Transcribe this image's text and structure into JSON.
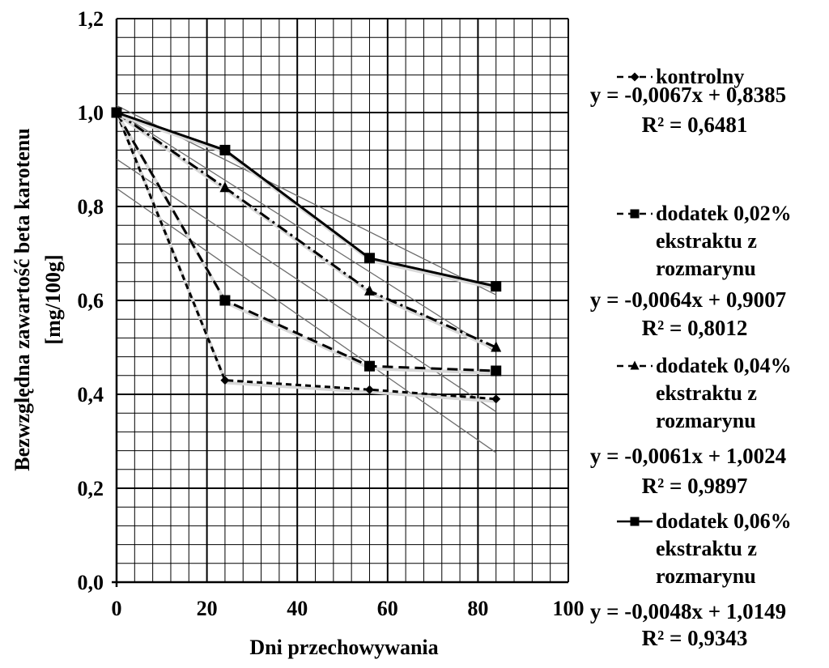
{
  "chart_data": {
    "type": "line",
    "xlabel": "Dni przechowywania",
    "ylabel": "Bezwzględna zawartość beta karotenu [mg/100g]",
    "ylabel_line1": "Bezwzględna zawartość beta karotenu",
    "ylabel_line2": "[mg/100g]",
    "xlim": [
      0,
      100
    ],
    "ylim": [
      0,
      1.2
    ],
    "x_ticks": [
      {
        "value": 0,
        "label": "0"
      },
      {
        "value": 20,
        "label": "20"
      },
      {
        "value": 40,
        "label": "40"
      },
      {
        "value": 60,
        "label": "60"
      },
      {
        "value": 80,
        "label": "80"
      },
      {
        "value": 100,
        "label": "100"
      }
    ],
    "y_ticks": [
      {
        "value": 0,
        "label": "0,0"
      },
      {
        "value": 0.2,
        "label": "0,2"
      },
      {
        "value": 0.4,
        "label": "0,4"
      },
      {
        "value": 0.6,
        "label": "0,6"
      },
      {
        "value": 0.8,
        "label": "0,8"
      },
      {
        "value": 1.0,
        "label": "1,0"
      },
      {
        "value": 1.2,
        "label": "1,2"
      }
    ],
    "grid": true,
    "legend_position": "right",
    "series": [
      {
        "name": "kontrolny",
        "legend_lines": [
          "kontrolny"
        ],
        "marker": "diamond",
        "dash": "dashdot-short",
        "x": [
          0,
          24,
          56,
          84
        ],
        "y": [
          1.0,
          0.43,
          0.41,
          0.39
        ],
        "trendline": {
          "slope": -0.0067,
          "intercept": 0.8385
        },
        "equation": "y = -0,0067x + 0,8385",
        "r2": "R² = 0,6481"
      },
      {
        "name": "dodatek 0,02% ekstraktu z rozmarynu",
        "legend_lines": [
          "dodatek 0,02%",
          "ekstraktu z",
          "rozmarynu"
        ],
        "marker": "square",
        "dash": "dashed",
        "x": [
          0,
          24,
          56,
          84
        ],
        "y": [
          1.0,
          0.6,
          0.46,
          0.45
        ],
        "trendline": {
          "slope": -0.0064,
          "intercept": 0.9007
        },
        "equation": "y = -0,0064x + 0,9007",
        "r2": "R² = 0,8012"
      },
      {
        "name": "dodatek 0,04% ekstraktu z rozmarynu",
        "legend_lines": [
          "dodatek 0,04%",
          "ekstraktu z",
          "rozmarynu"
        ],
        "marker": "triangle",
        "dash": "dashdot",
        "x": [
          0,
          24,
          56,
          84
        ],
        "y": [
          1.0,
          0.84,
          0.62,
          0.5
        ],
        "trendline": {
          "slope": -0.0061,
          "intercept": 1.0024
        },
        "equation": "y = -0,0061x + 1,0024",
        "r2": "R² = 0,9897"
      },
      {
        "name": "dodatek 0,06% ekstraktu z rozmarynu",
        "legend_lines": [
          "dodatek 0,06%",
          "ekstraktu z",
          "rozmarynu"
        ],
        "marker": "square",
        "dash": "solid",
        "x": [
          0,
          24,
          56,
          84
        ],
        "y": [
          1.0,
          0.92,
          0.69,
          0.63
        ],
        "trendline": {
          "slope": -0.0048,
          "intercept": 1.0149
        },
        "equation": "y = -0,0048x + 1,0149",
        "r2": "R² = 0,9343"
      }
    ]
  }
}
